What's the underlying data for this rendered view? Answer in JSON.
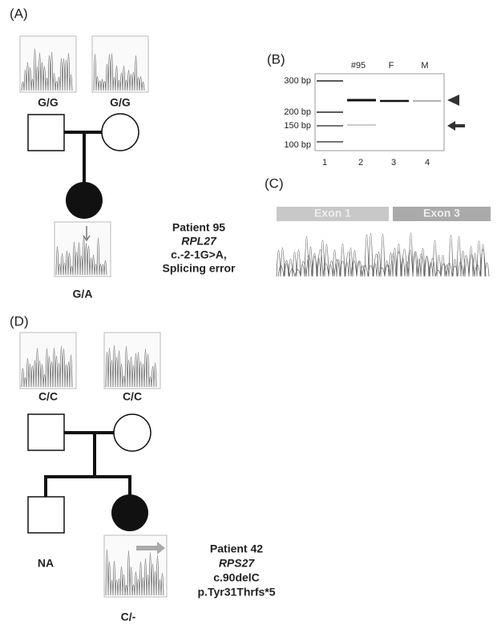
{
  "panel_a": {
    "label": "(A)",
    "father_genotype": "G/G",
    "mother_genotype": "G/G",
    "proband_genotype": "G/A",
    "patient": {
      "name": "Patient 95",
      "gene": "RPL27",
      "variant": "c.-2-1G>A,",
      "effect": "Splicing error"
    }
  },
  "panel_b": {
    "label": "(B)",
    "lane_headers": [
      "#95",
      "F",
      "M"
    ],
    "size_markers": [
      "300 bp",
      "200 bp",
      "150 bp",
      "100 bp"
    ],
    "lane_numbers": [
      "1",
      "2",
      "3",
      "4"
    ]
  },
  "panel_c": {
    "label": "(C)",
    "exons": [
      "Exon 1",
      "Exon 3"
    ]
  },
  "panel_d": {
    "label": "(D)",
    "father_genotype": "C/C",
    "mother_genotype": "C/C",
    "sibling_genotype": "NA",
    "proband_genotype": "C/-",
    "patient": {
      "name": "Patient 42",
      "gene": "RPS27",
      "variant": "c.90delC",
      "effect": "p.Tyr31Thrfs*5"
    }
  }
}
